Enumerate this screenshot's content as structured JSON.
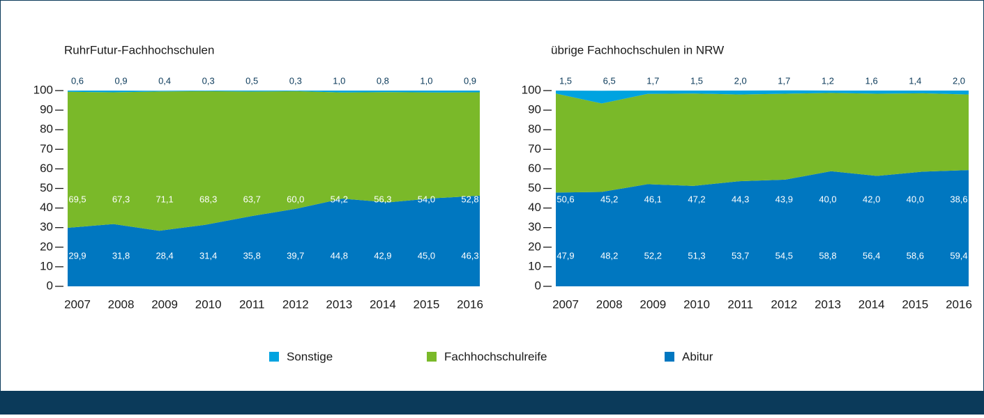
{
  "chart_data": [
    {
      "type": "area",
      "stacked": true,
      "title": "RuhrFutur-Fachhochschulen",
      "categories": [
        "2007",
        "2008",
        "2009",
        "2010",
        "2011",
        "2012",
        "2013",
        "2014",
        "2015",
        "2016"
      ],
      "ylim": [
        0,
        100
      ],
      "yticks": [
        0,
        10,
        20,
        30,
        40,
        50,
        60,
        70,
        80,
        90,
        100
      ],
      "series": [
        {
          "name": "Sonstige",
          "color": "#00a3e0",
          "values": [
            0.6,
            0.9,
            0.4,
            0.3,
            0.5,
            0.3,
            1.0,
            0.8,
            1.0,
            0.9
          ],
          "value_labels": [
            "0,6",
            "0,9",
            "0,4",
            "0,3",
            "0,5",
            "0,3",
            "1,0",
            "0,8",
            "1,0",
            "0,9"
          ]
        },
        {
          "name": "Fachhochschulreife",
          "color": "#7ab929",
          "values": [
            69.5,
            67.3,
            71.1,
            68.3,
            63.7,
            60.0,
            54.2,
            56.3,
            54.0,
            52.8
          ],
          "value_labels": [
            "69,5",
            "67,3",
            "71,1",
            "68,3",
            "63,7",
            "60,0",
            "54,2",
            "56,3",
            "54,0",
            "52,8"
          ]
        },
        {
          "name": "Abitur",
          "color": "#0077c0",
          "values": [
            29.9,
            31.8,
            28.4,
            31.4,
            35.8,
            39.7,
            44.8,
            42.9,
            45.0,
            46.3
          ],
          "value_labels": [
            "29,9",
            "31,8",
            "28,4",
            "31,4",
            "35,8",
            "39,7",
            "44,8",
            "42,9",
            "45,0",
            "46,3"
          ]
        }
      ]
    },
    {
      "type": "area",
      "stacked": true,
      "title": "übrige Fachhochschulen in NRW",
      "categories": [
        "2007",
        "2008",
        "2009",
        "2010",
        "2011",
        "2012",
        "2013",
        "2014",
        "2015",
        "2016"
      ],
      "ylim": [
        0,
        100
      ],
      "yticks": [
        0,
        10,
        20,
        30,
        40,
        50,
        60,
        70,
        80,
        90,
        100
      ],
      "series": [
        {
          "name": "Sonstige",
          "color": "#00a3e0",
          "values": [
            1.5,
            6.5,
            1.7,
            1.5,
            2.0,
            1.7,
            1.2,
            1.6,
            1.4,
            2.0
          ],
          "value_labels": [
            "1,5",
            "6,5",
            "1,7",
            "1,5",
            "2,0",
            "1,7",
            "1,2",
            "1,6",
            "1,4",
            "2,0"
          ]
        },
        {
          "name": "Fachhochschulreife",
          "color": "#7ab929",
          "values": [
            50.6,
            45.2,
            46.1,
            47.2,
            44.3,
            43.9,
            40.0,
            42.0,
            40.0,
            38.6
          ],
          "value_labels": [
            "50,6",
            "45,2",
            "46,1",
            "47,2",
            "44,3",
            "43,9",
            "40,0",
            "42,0",
            "40,0",
            "38,6"
          ]
        },
        {
          "name": "Abitur",
          "color": "#0077c0",
          "values": [
            47.9,
            48.2,
            52.2,
            51.3,
            53.7,
            54.5,
            58.8,
            56.4,
            58.6,
            59.4
          ],
          "value_labels": [
            "47,9",
            "48,2",
            "52,2",
            "51,3",
            "53,7",
            "54,5",
            "58,8",
            "56,4",
            "58,6",
            "59,4"
          ]
        }
      ]
    }
  ]
}
